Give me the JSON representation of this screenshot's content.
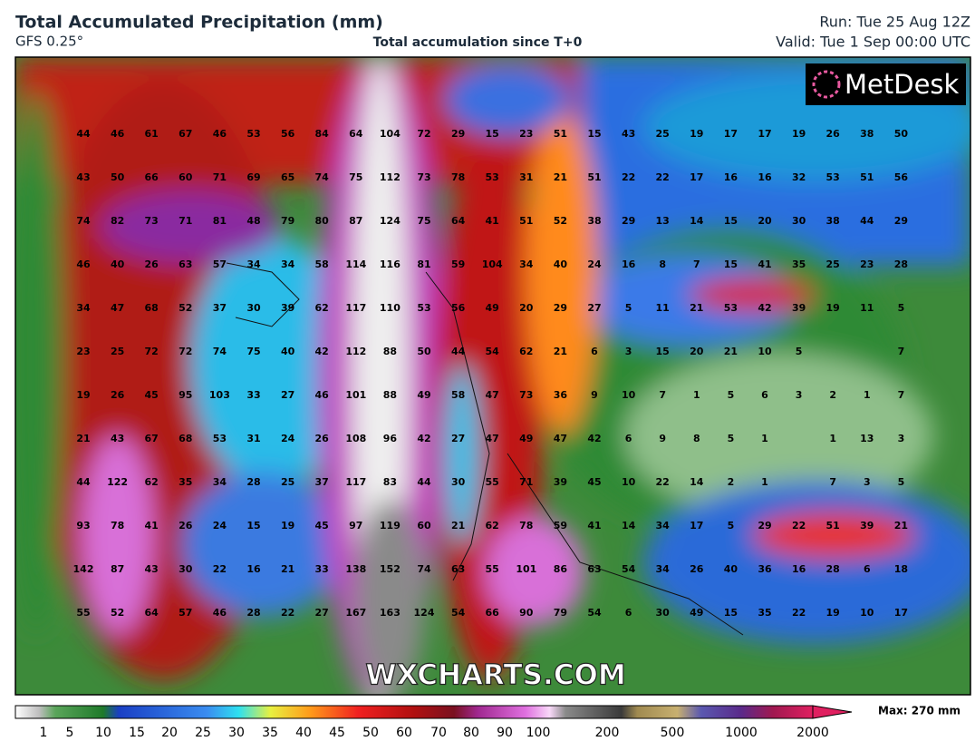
{
  "header": {
    "title": "Total Accumulated Precipitation (mm)",
    "model": "GFS 0.25°",
    "subtitle": "Total accumulation since T+0",
    "run": "Run: Tue 25 Aug 12Z",
    "valid": "Valid: Tue 1 Sep 00:00 UTC"
  },
  "logo": "MetDesk",
  "watermark": "WXCHARTS.COM",
  "grid_values": [
    [
      44,
      46,
      61,
      67,
      46,
      53,
      56,
      84,
      64,
      104,
      72,
      29,
      15,
      23,
      51,
      15,
      43,
      25,
      19,
      17,
      17,
      19,
      26,
      38,
      50
    ],
    [
      43,
      50,
      66,
      60,
      71,
      69,
      65,
      74,
      75,
      112,
      73,
      78,
      53,
      31,
      21,
      51,
      22,
      22,
      17,
      16,
      16,
      32,
      53,
      51,
      56
    ],
    [
      74,
      82,
      73,
      71,
      81,
      48,
      79,
      80,
      87,
      124,
      75,
      64,
      41,
      51,
      52,
      38,
      29,
      13,
      14,
      15,
      20,
      30,
      38,
      44,
      29
    ],
    [
      46,
      40,
      26,
      63,
      57,
      34,
      34,
      58,
      114,
      116,
      81,
      59,
      104,
      34,
      40,
      24,
      16,
      8,
      7,
      15,
      41,
      35,
      25,
      23,
      28
    ],
    [
      34,
      47,
      68,
      52,
      37,
      30,
      39,
      62,
      117,
      110,
      53,
      56,
      49,
      20,
      29,
      27,
      5,
      11,
      21,
      53,
      42,
      39,
      19,
      11,
      5
    ],
    [
      23,
      25,
      72,
      72,
      74,
      75,
      40,
      42,
      112,
      88,
      50,
      44,
      54,
      62,
      21,
      6,
      3,
      15,
      20,
      21,
      10,
      5,
      null,
      null,
      7
    ],
    [
      19,
      26,
      45,
      95,
      103,
      33,
      27,
      46,
      101,
      88,
      49,
      58,
      47,
      73,
      36,
      9,
      10,
      7,
      1,
      5,
      6,
      3,
      2,
      1,
      7
    ],
    [
      21,
      43,
      67,
      68,
      53,
      31,
      24,
      26,
      108,
      96,
      42,
      27,
      47,
      49,
      47,
      42,
      6,
      9,
      8,
      5,
      1,
      null,
      1,
      13,
      3
    ],
    [
      44,
      122,
      62,
      35,
      34,
      28,
      25,
      37,
      117,
      83,
      44,
      30,
      55,
      71,
      39,
      45,
      10,
      22,
      14,
      2,
      1,
      null,
      7,
      3,
      5
    ],
    [
      93,
      78,
      41,
      26,
      24,
      15,
      19,
      45,
      97,
      119,
      60,
      21,
      62,
      78,
      59,
      41,
      14,
      34,
      17,
      5,
      29,
      22,
      51,
      39,
      21
    ],
    [
      142,
      87,
      43,
      30,
      22,
      16,
      21,
      33,
      138,
      152,
      74,
      63,
      55,
      101,
      86,
      63,
      54,
      34,
      26,
      40,
      36,
      16,
      28,
      6,
      18
    ],
    [
      55,
      52,
      64,
      57,
      46,
      28,
      22,
      27,
      167,
      163,
      124,
      54,
      66,
      90,
      79,
      54,
      6,
      30,
      49,
      15,
      35,
      22,
      19,
      10,
      17
    ]
  ],
  "colorbar": {
    "labels": [
      1,
      5,
      10,
      15,
      20,
      25,
      30,
      35,
      40,
      45,
      50,
      60,
      70,
      80,
      90,
      100,
      200,
      500,
      1000,
      2000
    ],
    "max_label": "Max: 270 mm"
  }
}
